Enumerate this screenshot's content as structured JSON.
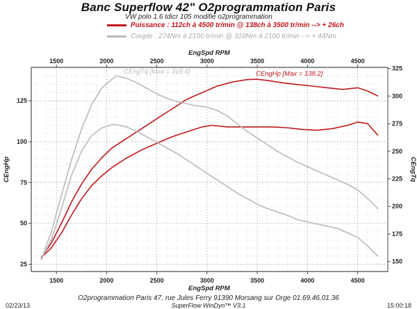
{
  "header": {
    "title": "Banc Superflow 42\" O2programmation Paris",
    "subtitle": "VW polo 1.6 tdicr 105 modifié o2programmation",
    "legend_power": "Puissance : 112ch à 4500 tr/min @ 138ch à 3500 tr/min --> + 26ch",
    "legend_torque": "Couple : 274Nm à 2100 tr/min @ 318Nm à 2100 tr/min --> + 44Nm"
  },
  "footer": {
    "address": "O2programmation Paris 47, rue Jules Ferry 91390 Morsang sur Orge 01.69.46.01.36",
    "software": "SuperFlow WinDyn™ V3.1",
    "date": "02/23/13",
    "time": "15:00:18"
  },
  "colors": {
    "power": "#c0161b",
    "torque": "#b9b9b9"
  },
  "chart_data": {
    "type": "line",
    "xlabel_top": "EngSpd RPM",
    "xlabel_bottom": "EngSpd RPM",
    "ylabel_left": "CEngHp",
    "ylabel_right": "CEngTq",
    "x_ticks": [
      1500,
      2000,
      2500,
      3000,
      3500,
      4000,
      4500
    ],
    "xlim": [
      1250,
      4800
    ],
    "ylim_left": [
      20,
      145
    ],
    "yticks_left": [
      25,
      50,
      75,
      100,
      125
    ],
    "ylim_right": [
      140,
      325
    ],
    "yticks_right": [
      150,
      175,
      200,
      225,
      250,
      275,
      300,
      325
    ],
    "grid": true,
    "annotations": {
      "power_max": "CEngHp [Max = 138.2]",
      "torque_max": "CEngTq [Max = 318.4]"
    },
    "series": [
      {
        "key": "power_modified",
        "color": "#c0161b",
        "axis": "left",
        "x": [
          1350,
          1450,
          1550,
          1650,
          1750,
          1850,
          1950,
          2050,
          2200,
          2350,
          2500,
          2650,
          2800,
          2950,
          3100,
          3250,
          3400,
          3500,
          3600,
          3750,
          3900,
          4050,
          4200,
          4350,
          4500,
          4600,
          4700
        ],
        "y": [
          29,
          38,
          50,
          63,
          74,
          83,
          90,
          96,
          102,
          108,
          114,
          120,
          126,
          130,
          134,
          136.5,
          138,
          138.2,
          137.5,
          136,
          135,
          134,
          133,
          132,
          133,
          131,
          128
        ]
      },
      {
        "key": "power_stock",
        "color": "#c0161b",
        "axis": "left",
        "x": [
          1350,
          1450,
          1550,
          1650,
          1750,
          1850,
          1950,
          2050,
          2200,
          2350,
          2500,
          2650,
          2800,
          2950,
          3050,
          3200,
          3350,
          3500,
          3650,
          3800,
          3950,
          4100,
          4250,
          4400,
          4500,
          4600,
          4700
        ],
        "y": [
          29,
          35,
          44,
          55,
          65,
          73,
          79,
          84,
          90,
          95,
          99,
          103,
          106,
          109,
          110,
          109,
          109,
          109,
          109,
          108.5,
          107.5,
          107,
          108,
          110,
          112,
          111,
          104
        ]
      },
      {
        "key": "torque_modified",
        "color": "#b9b9b9",
        "axis": "right",
        "x": [
          1350,
          1450,
          1550,
          1650,
          1750,
          1850,
          1950,
          2050,
          2100,
          2200,
          2300,
          2400,
          2500,
          2600,
          2700,
          2800,
          2900,
          3000,
          3100,
          3200,
          3300,
          3400,
          3500,
          3600,
          3700,
          3800,
          3900,
          4000,
          4100,
          4200,
          4300,
          4400,
          4500,
          4600,
          4700
        ],
        "y": [
          152,
          177,
          210,
          242,
          270,
          292,
          307,
          315,
          318.4,
          316,
          312,
          307,
          302,
          298,
          295,
          293,
          291,
          290,
          287,
          282,
          275,
          268,
          262,
          256,
          250,
          245,
          240,
          236,
          232,
          228,
          224,
          220,
          215,
          207,
          198
        ]
      },
      {
        "key": "torque_stock",
        "color": "#b9b9b9",
        "axis": "right",
        "x": [
          1350,
          1450,
          1550,
          1650,
          1750,
          1850,
          1950,
          2050,
          2100,
          2200,
          2300,
          2400,
          2500,
          2600,
          2700,
          2800,
          2900,
          3000,
          3100,
          3200,
          3300,
          3400,
          3500,
          3600,
          3700,
          3800,
          3900,
          4000,
          4100,
          4200,
          4300,
          4400,
          4500,
          4600,
          4700
        ],
        "y": [
          152,
          170,
          198,
          228,
          250,
          264,
          271,
          274,
          274,
          272,
          268,
          263,
          258,
          253,
          248,
          242,
          236,
          230,
          224,
          218,
          212,
          207,
          202,
          198,
          195,
          192,
          188,
          186,
          184,
          182,
          180,
          176,
          172,
          164,
          155
        ]
      }
    ]
  }
}
